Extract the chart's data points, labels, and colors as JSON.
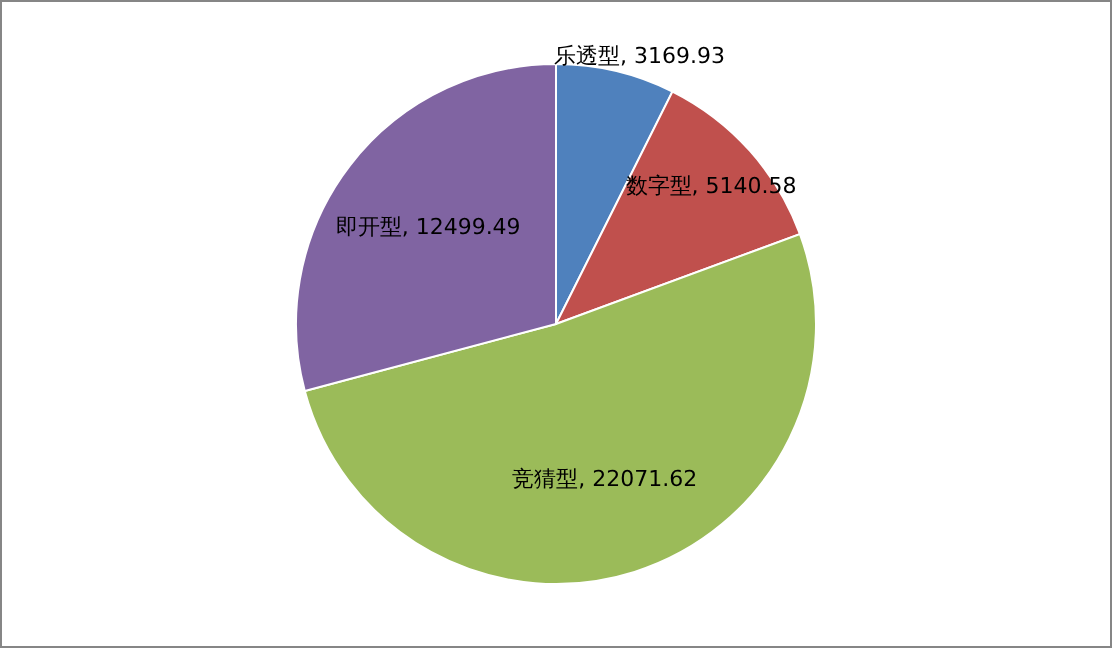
{
  "chart_data": {
    "type": "pie",
    "categories": [
      "乐透型",
      "数字型",
      "竞猜型",
      "即开型"
    ],
    "values": [
      3169.93,
      5140.58,
      22071.62,
      12499.49
    ],
    "value_labels": [
      ", 3169.93",
      ", 5140.58",
      ", 22071.62",
      ", 12499.49"
    ],
    "colors": [
      "#4f81bd",
      "#c0504d",
      "#9bbb59",
      "#8064a2"
    ],
    "legend": false
  }
}
